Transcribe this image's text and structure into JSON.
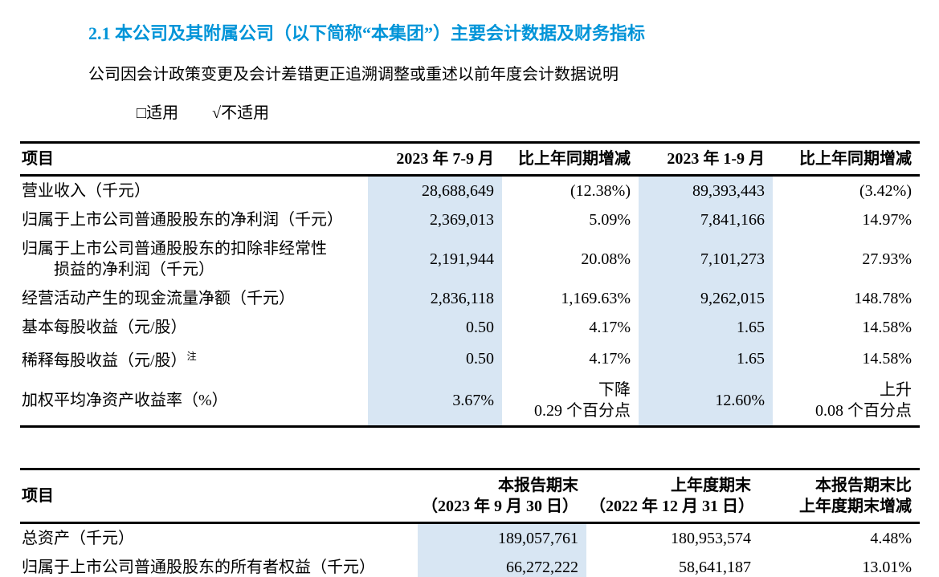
{
  "document": {
    "section_title": "2.1 本公司及其附属公司（以下简称“本集团”）主要会计数据及财务指标",
    "restatement_note": "公司因会计政策变更及会计差错更正追溯调整或重述以前年度会计数据说明",
    "options": {
      "applicable": "□适用",
      "not_applicable": "√不适用"
    }
  },
  "colors": {
    "title_blue": "#0094d8",
    "column_highlight": "#d8e6f3"
  },
  "table1": {
    "headers": [
      "项目",
      "2023 年 7-9 月",
      "比上年同期增减",
      "2023 年 1-9 月",
      "比上年同期增减"
    ],
    "rows": [
      [
        "营业收入（千元）",
        "28,688,649",
        "(12.38%)",
        "89,393,443",
        "(3.42%)"
      ],
      [
        "归属于上市公司普通股股东的净利润（千元）",
        "2,369,013",
        "5.09%",
        "7,841,166",
        "14.97%"
      ],
      [
        "归属于上市公司普通股股东的扣除非经常性\n　　损益的净利润（千元）",
        "2,191,944",
        "20.08%",
        "7,101,273",
        "27.93%"
      ],
      [
        "经营活动产生的现金流量净额（千元）",
        "2,836,118",
        "1,169.63%",
        "9,262,015",
        "148.78%"
      ],
      [
        "基本每股收益（元/股）",
        "0.50",
        "4.17%",
        "1.65",
        "14.58%"
      ],
      [
        {
          "text": "稀释每股收益（元/股）",
          "sup": "注"
        },
        "0.50",
        "4.17%",
        "1.65",
        "14.58%"
      ],
      [
        "加权平均净资产收益率（%）",
        "3.67%",
        "下降\n0.29 个百分点",
        "12.60%",
        "上升\n0.08 个百分点"
      ]
    ]
  },
  "table2": {
    "headers": [
      "项目",
      "本报告期末\n（2023 年 9 月 30 日）",
      "上年度期末\n（2022 年 12 月 31 日）",
      "本报告期末比\n上年度期末增减"
    ],
    "rows": [
      [
        "总资产（千元）",
        "189,057,761",
        "180,953,574",
        "4.48%"
      ],
      [
        "归属于上市公司普通股股东的所有者权益（千元）",
        "66,272,222",
        "58,641,187",
        "13.01%"
      ]
    ]
  }
}
